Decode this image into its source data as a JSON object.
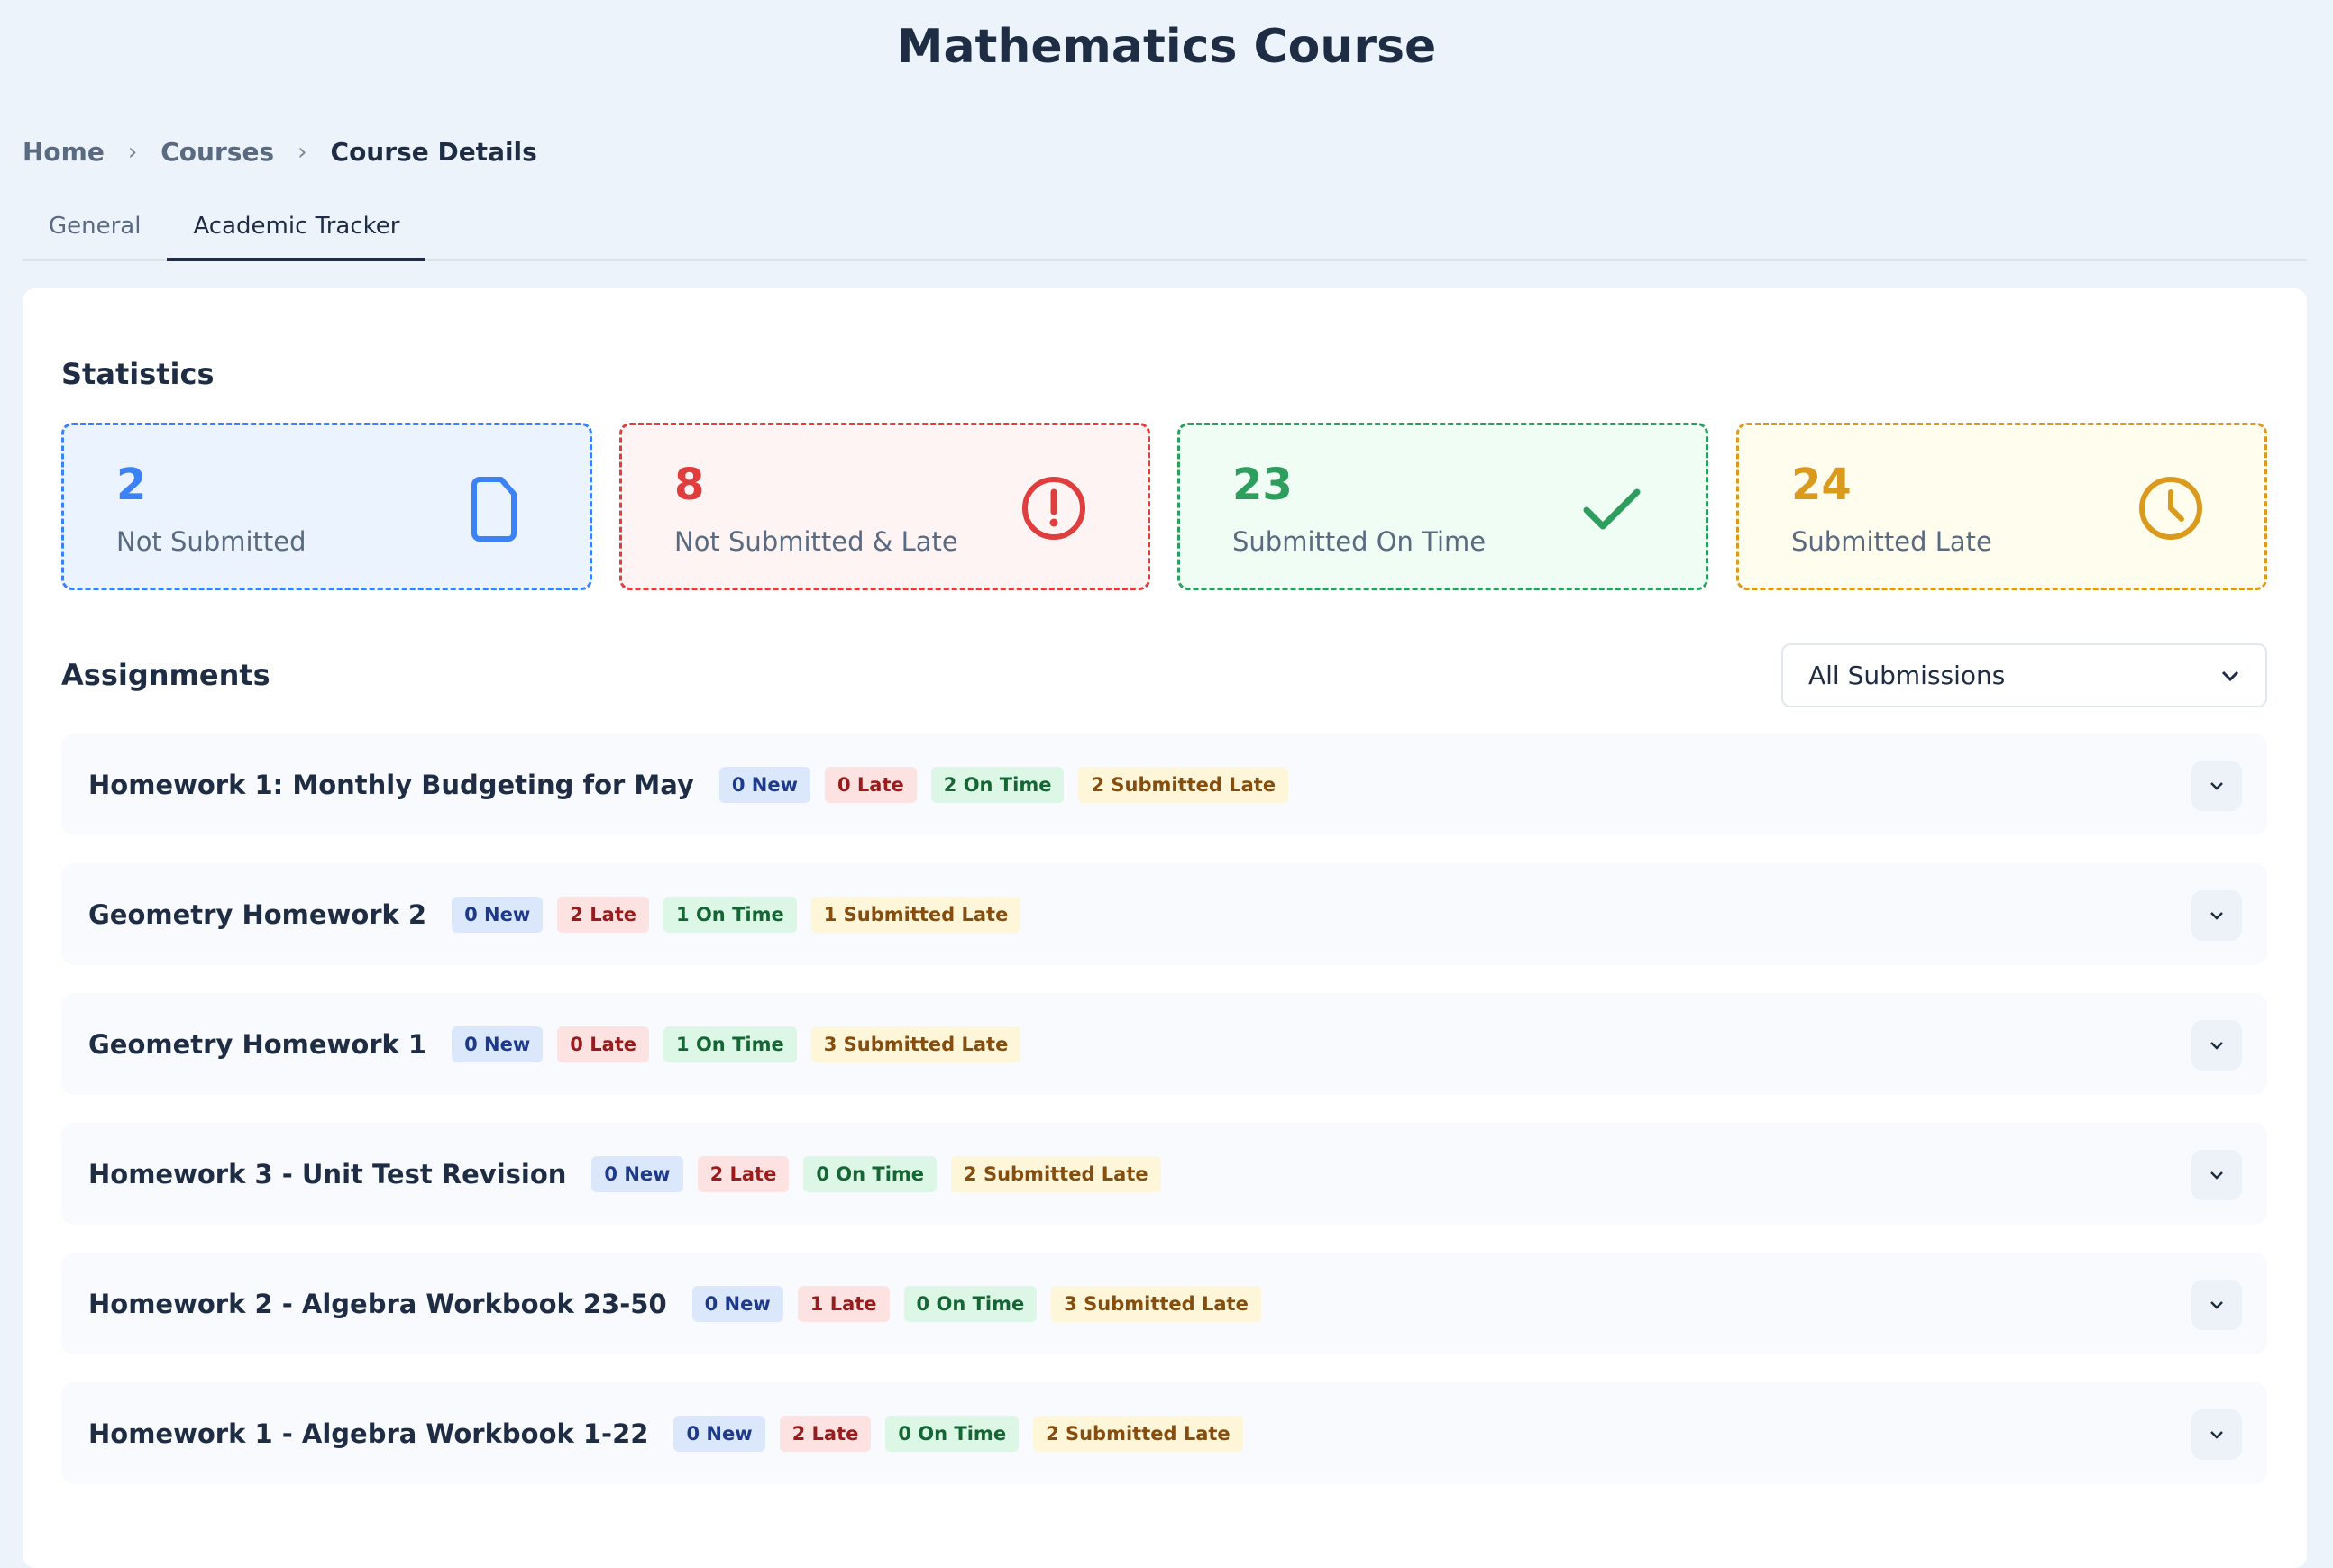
{
  "title": "Mathematics Course",
  "breadcrumb": {
    "items": [
      "Home",
      "Courses"
    ],
    "current": "Course Details"
  },
  "tabs": [
    {
      "label": "General"
    },
    {
      "label": "Academic Tracker",
      "active": true
    }
  ],
  "statistics": {
    "heading": "Statistics",
    "cards": [
      {
        "value": "2",
        "label": "Not Submitted",
        "icon": "document-icon",
        "color": "#3b82f6",
        "bg": "#eaf3fe"
      },
      {
        "value": "8",
        "label": "Not Submitted & Late",
        "icon": "alert-circle-icon",
        "color": "#e03e3e",
        "bg": "#fff4f4"
      },
      {
        "value": "23",
        "label": "Submitted On Time",
        "icon": "check-icon",
        "color": "#2e9e5e",
        "bg": "#effdf4"
      },
      {
        "value": "24",
        "label": "Submitted Late",
        "icon": "clock-icon",
        "color": "#d99a1e",
        "bg": "#fffdee"
      }
    ]
  },
  "assignments": {
    "heading": "Assignments",
    "filter": "All Submissions",
    "items": [
      {
        "name": "Homework 1: Monthly Budgeting for May",
        "new": "0 New",
        "late": "0 Late",
        "on_time": "2 On Time",
        "submitted_late": "2 Submitted Late"
      },
      {
        "name": "Geometry Homework 2",
        "new": "0 New",
        "late": "2 Late",
        "on_time": "1 On Time",
        "submitted_late": "1 Submitted Late"
      },
      {
        "name": "Geometry Homework 1",
        "new": "0 New",
        "late": "0 Late",
        "on_time": "1 On Time",
        "submitted_late": "3 Submitted Late"
      },
      {
        "name": "Homework 3 - Unit Test Revision",
        "new": "0 New",
        "late": "2 Late",
        "on_time": "0 On Time",
        "submitted_late": "2 Submitted Late"
      },
      {
        "name": "Homework 2 - Algebra Workbook 23-50",
        "new": "0 New",
        "late": "1 Late",
        "on_time": "0 On Time",
        "submitted_late": "3 Submitted Late"
      },
      {
        "name": "Homework 1 - Algebra Workbook 1-22",
        "new": "0 New",
        "late": "2 Late",
        "on_time": "0 On Time",
        "submitted_late": "2 Submitted Late"
      }
    ]
  }
}
